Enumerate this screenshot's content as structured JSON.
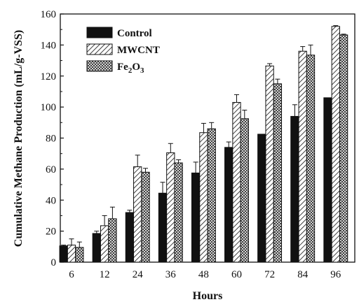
{
  "chart_data": {
    "type": "bar",
    "xlabel": "Hours",
    "ylabel": "Cumulative Methane Production (mL/g-VSS)",
    "ylim": [
      0,
      160
    ],
    "yticks": [
      0,
      20,
      40,
      60,
      80,
      100,
      120,
      140,
      160
    ],
    "categories": [
      "6",
      "12",
      "24",
      "36",
      "48",
      "60",
      "72",
      "84",
      "96"
    ],
    "legend_position": "top-left",
    "series": [
      {
        "name": "Control",
        "legend": {
          "base": "Fe",
          "sub": "",
          "rest": ""
        },
        "pattern": "solid",
        "color": "#111111",
        "values": [
          10.5,
          18.5,
          32.0,
          44.5,
          57.5,
          74.0,
          82.5,
          94.0,
          106.0
        ],
        "errors": [
          0.5,
          1.5,
          1.5,
          7.0,
          7.0,
          3.5,
          0.0,
          7.5,
          0.0
        ]
      },
      {
        "name": "MWCNT",
        "pattern": "hatch",
        "color": "#111111",
        "values": [
          11.0,
          23.5,
          61.5,
          70.5,
          83.5,
          103.0,
          126.5,
          136.0,
          152.0
        ],
        "errors": [
          4.0,
          6.5,
          7.5,
          6.0,
          6.0,
          5.0,
          1.5,
          3.0,
          0.5
        ]
      },
      {
        "name": "Fe2O3",
        "pattern": "crosshatch",
        "color": "#111111",
        "values": [
          9.5,
          28.0,
          58.0,
          64.0,
          86.0,
          92.5,
          115.0,
          133.5,
          146.5
        ],
        "errors": [
          3.5,
          7.5,
          2.5,
          2.0,
          4.0,
          5.5,
          3.0,
          6.5,
          0.5
        ]
      }
    ]
  },
  "legend": {
    "control": "Control",
    "mwcnt": "MWCNT",
    "fe_base": "Fe",
    "fe_sub1": "2",
    "fe_mid": "O",
    "fe_sub2": "3"
  }
}
